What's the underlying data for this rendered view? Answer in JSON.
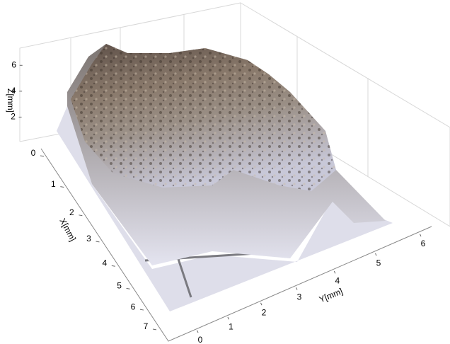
{
  "chart_data": {
    "type": "surface",
    "xlabel": "X[mm]",
    "ylabel": "Y[mm]",
    "zlabel": "Z[mm]",
    "xlim": [
      0,
      7
    ],
    "xticks": [
      0,
      1,
      2,
      3,
      4,
      5,
      6,
      7
    ],
    "ylim": [
      0,
      6
    ],
    "yticks": [
      0,
      1,
      2,
      3,
      4,
      5,
      6
    ],
    "zlim": [
      0,
      7
    ],
    "zticks": [
      2,
      4,
      6
    ]
  }
}
